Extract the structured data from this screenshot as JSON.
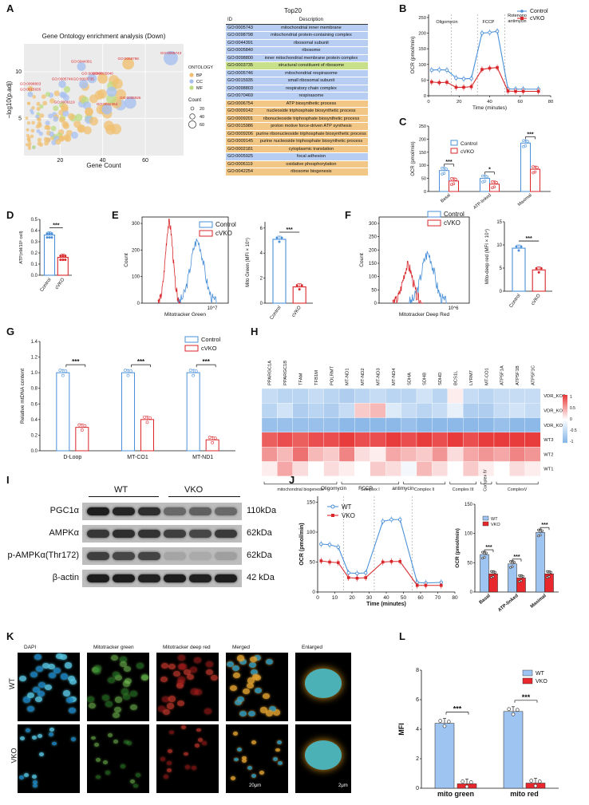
{
  "panels": {
    "A": "A",
    "B": "B",
    "C": "C",
    "D": "D",
    "E": "E",
    "F": "F",
    "G": "G",
    "H": "H",
    "I": "I",
    "J": "J",
    "K": "K",
    "L": "L"
  },
  "colors": {
    "control": "#4a90d9",
    "cvko": "#d9262b",
    "bp": "#f0c070",
    "cc": "#a8c0f0",
    "mf": "#bcdc80"
  },
  "panelA": {
    "bubble": {
      "title": "Gene Ontology enrichment analysis (Down)",
      "xlabel": "Gene Count",
      "ylabel": "−log10(p.adj)",
      "xticks": [
        "20",
        "40",
        "60"
      ],
      "yticks": [
        "5",
        "10"
      ],
      "legend_ontology_title": "ONTOLOGY",
      "legend_ontology": [
        "BP",
        "CC",
        "MF"
      ],
      "legend_count_title": "Count",
      "legend_count": [
        "20",
        "40",
        "60"
      ],
      "labels": [
        {
          "text": "GO:0005743",
          "x": 72,
          "y": 11.9
        },
        {
          "text": "GO:0098798",
          "x": 52,
          "y": 11.3
        },
        {
          "text": "GO:0044391",
          "x": 30,
          "y": 11.0
        },
        {
          "text": "GO:0098800",
          "x": 35,
          "y": 9.7
        },
        {
          "text": "GO:0005840",
          "x": 40,
          "y": 9.7
        },
        {
          "text": "GO:0005746",
          "x": 21,
          "y": 9.1
        },
        {
          "text": "GO:0003735",
          "x": 31,
          "y": 9.1
        },
        {
          "text": "GO:0098803",
          "x": 6,
          "y": 8.6
        },
        {
          "text": "GO:0015935",
          "x": 6,
          "y": 8.0
        },
        {
          "text": "GO:0005925",
          "x": 53,
          "y": 7.1
        },
        {
          "text": "GO:0006119",
          "x": 22,
          "y": 6.6
        },
        {
          "text": "GO:0042254",
          "x": 42,
          "y": 6.4
        }
      ]
    },
    "table": {
      "title": "Top20",
      "headers": [
        "ID",
        "Description"
      ],
      "rows": [
        {
          "id": "GO:0005743",
          "desc": "mitochondrial inner membrane",
          "ont": "CC"
        },
        {
          "id": "GO:0098798",
          "desc": "mitochondrial protein-containing complex",
          "ont": "CC"
        },
        {
          "id": "GO:0044391",
          "desc": "ribosomal subunit",
          "ont": "CC"
        },
        {
          "id": "GO:0005840",
          "desc": "ribosome",
          "ont": "CC"
        },
        {
          "id": "GO:0098800",
          "desc": "inner mitochondrial membrane protein complex",
          "ont": "CC"
        },
        {
          "id": "GO:0003735",
          "desc": "structural constituent of ribosome",
          "ont": "MF"
        },
        {
          "id": "GO:0005746",
          "desc": "mitochondrial respirasome",
          "ont": "CC"
        },
        {
          "id": "GO:0015935",
          "desc": "small ribosomal subunit",
          "ont": "CC"
        },
        {
          "id": "GO:0098803",
          "desc": "respiratory chain complex",
          "ont": "CC"
        },
        {
          "id": "GO:0070469",
          "desc": "respirasome",
          "ont": "CC"
        },
        {
          "id": "GO:0006754",
          "desc": "ATP biosynthetic process",
          "ont": "BP"
        },
        {
          "id": "GO:0009142",
          "desc": "nucleoside triphosphate biosynthetic process",
          "ont": "BP"
        },
        {
          "id": "GO:0009201",
          "desc": "ribonucleoside triphosphate biosynthetic process",
          "ont": "BP"
        },
        {
          "id": "GO:0015986",
          "desc": "proton motive force-driven ATP synthesis",
          "ont": "BP"
        },
        {
          "id": "GO:0009206",
          "desc": "purine ribonucleoside triphosphate biosynthetic process",
          "ont": "BP"
        },
        {
          "id": "GO:0009145",
          "desc": "purine nucleoside triphosphate biosynthetic process",
          "ont": "BP"
        },
        {
          "id": "GO:0002181",
          "desc": "cytoplasmic translation",
          "ont": "BP"
        },
        {
          "id": "GO:0005925",
          "desc": "focal adhesion",
          "ont": "CC"
        },
        {
          "id": "GO:0006119",
          "desc": "oxidative phosphorylation",
          "ont": "BP"
        },
        {
          "id": "GO:0042254",
          "desc": "ribosome biogenesis",
          "ont": "BP"
        }
      ]
    }
  },
  "chart_data": [
    {
      "panel": "B",
      "type": "line",
      "ylabel": "OCR (pmol/min)",
      "xlabel": "Time (minutes)",
      "xticks": [
        "0",
        "20",
        "40",
        "60",
        "80"
      ],
      "yticks": [
        "0",
        "50",
        "100",
        "150",
        "200",
        "250"
      ],
      "xlim": [
        0,
        80
      ],
      "ylim": [
        0,
        260
      ],
      "annotations": [
        "Oligomycin",
        "FCCP",
        "Rotenono antimycin"
      ],
      "series": [
        {
          "name": "Control",
          "x": [
            2,
            7,
            12,
            18,
            23,
            28,
            35,
            40,
            45,
            52,
            57,
            62,
            72
          ],
          "y": [
            82,
            83,
            82,
            57,
            54,
            55,
            200,
            202,
            206,
            22,
            21,
            21,
            21
          ]
        },
        {
          "name": "cVKO",
          "x": [
            2,
            7,
            12,
            18,
            23,
            28,
            35,
            40,
            45,
            52,
            57,
            62,
            72
          ],
          "y": [
            44,
            42,
            43,
            27,
            27,
            29,
            84,
            88,
            90,
            15,
            14,
            14,
            14
          ]
        }
      ]
    },
    {
      "panel": "C",
      "type": "bar",
      "ylabel": "OCR (pmol/min)",
      "categories": [
        "Basal",
        "ATP-linked",
        "Maximal"
      ],
      "yticks": [
        "0",
        "50",
        "100",
        "150",
        "200",
        "250"
      ],
      "ylim": [
        0,
        250
      ],
      "significance": [
        "***",
        "*",
        "***"
      ],
      "series": [
        {
          "name": "Control",
          "values": [
            80,
            50,
            185
          ]
        },
        {
          "name": "cVKO",
          "values": [
            40,
            28,
            85
          ]
        }
      ]
    },
    {
      "panel": "D",
      "type": "bar",
      "ylabel": "ATP(nM/10⁵ cell)",
      "categories": [
        "Control",
        "cVKO"
      ],
      "yticks": [
        "0.0",
        "0.1",
        "0.2",
        "0.3",
        "0.4",
        "0.5"
      ],
      "ylim": [
        0,
        0.5
      ],
      "significance": "***",
      "values": [
        0.36,
        0.16
      ]
    },
    {
      "panel": "E_hist",
      "type": "line",
      "xlabel": "Mitotracker Green",
      "ylabel": "Count",
      "yticks": [
        "0",
        "100",
        "200",
        "300"
      ],
      "xtick_label": "10^7",
      "series": [
        {
          "name": "Control"
        },
        {
          "name": "cVKO"
        }
      ]
    },
    {
      "panel": "E_bar",
      "type": "bar",
      "ylabel": "Mito Green (MFI × 10⁵)",
      "categories": [
        "Control",
        "cVKO"
      ],
      "yticks": [
        "0",
        "2",
        "4",
        "6"
      ],
      "ylim": [
        0,
        6.5
      ],
      "significance": "***",
      "values": [
        5.1,
        1.3
      ]
    },
    {
      "panel": "F_hist",
      "type": "line",
      "xlabel": "Mitotracker Deep Red",
      "ylabel": "Count",
      "yticks": [
        "0",
        "50",
        "100",
        "150",
        "200",
        "250",
        "300"
      ],
      "xtick_label": "10^6",
      "series": [
        {
          "name": "Control"
        },
        {
          "name": "cVKO"
        }
      ]
    },
    {
      "panel": "F_bar",
      "type": "bar",
      "ylabel": "Mito-deep red (MFI × 10⁴)",
      "categories": [
        "Control",
        "cVKO"
      ],
      "yticks": [
        "0",
        "5",
        "10",
        "15"
      ],
      "ylim": [
        0,
        15
      ],
      "significance": "***",
      "values": [
        9.3,
        4.6
      ]
    },
    {
      "panel": "G",
      "type": "bar",
      "ylabel": "Relative mtDNA content",
      "categories": [
        "D-Loop",
        "MT-CO1",
        "MT-ND1"
      ],
      "yticks": [
        "0.0",
        "0.2",
        "0.4",
        "0.6",
        "0.8",
        "1.0",
        "1.2",
        "1.4"
      ],
      "ylim": [
        0,
        1.4
      ],
      "significance": [
        "***",
        "***",
        "***"
      ],
      "series": [
        {
          "name": "Control",
          "values": [
            1.0,
            1.0,
            1.0
          ]
        },
        {
          "name": "cVKO",
          "values": [
            0.3,
            0.4,
            0.14
          ]
        }
      ]
    },
    {
      "panel": "H",
      "type": "heatmap",
      "columns": [
        "PPARGC1A",
        "PPARGC1B",
        "TFAM",
        "TFB1M",
        "POLRMT",
        "MT-ND1",
        "MT-ND2",
        "MT-ND3",
        "MT-ND4",
        "SDHA",
        "SDHB",
        "SDHD",
        "BCS1L",
        "LYRM7",
        "MT-CO1",
        "ATP5F1A",
        "ATP5F1B",
        "ATP5F1C"
      ],
      "rows": [
        "VDR_KO3",
        "VDR_KO2",
        "VDR_KO1",
        "WT3",
        "WT2",
        "WT1"
      ],
      "scale": [
        "1",
        "0.5",
        "0",
        "-0.5",
        "-1"
      ],
      "groups": [
        "mitochondrial biogenesis",
        "Complex I",
        "Complex II",
        "Complex III",
        "Complex IV",
        "ComplexV"
      ],
      "values": [
        [
          -0.5,
          -0.6,
          -0.6,
          -0.5,
          -0.6,
          -0.7,
          -0.6,
          -0.5,
          -0.6,
          -0.6,
          -0.4,
          -0.6,
          0.1,
          -0.5,
          -0.6,
          -0.5,
          -0.5,
          -0.5
        ],
        [
          -0.6,
          -0.4,
          -0.7,
          -0.6,
          -0.7,
          -0.5,
          0.3,
          0.4,
          -0.3,
          -0.5,
          -0.6,
          -0.5,
          -0.2,
          -0.7,
          -0.7,
          -0.5,
          -0.4,
          -0.5
        ],
        [
          -0.9,
          -0.9,
          -0.9,
          -0.9,
          -0.9,
          -1.0,
          -1.0,
          -1.0,
          -1.0,
          -0.9,
          -1.0,
          -1.0,
          -1.0,
          -1.0,
          -1.0,
          -0.9,
          -1.0,
          -1.0
        ],
        [
          0.9,
          1.0,
          0.9,
          1.0,
          1.0,
          1.1,
          1.0,
          1.0,
          1.1,
          1.0,
          1.1,
          1.0,
          1.1,
          1.0,
          1.1,
          1.1,
          1.1,
          1.1
        ],
        [
          0.6,
          0.4,
          0.8,
          0.4,
          0.3,
          0.7,
          0.2,
          0.1,
          0.5,
          0.4,
          0.3,
          0.6,
          0.2,
          0.5,
          0.6,
          0.5,
          0.7,
          0.6
        ],
        [
          0.1,
          0.5,
          0.2,
          0.0,
          0.2,
          0.1,
          0.0,
          0.3,
          0.2,
          -0.1,
          0.4,
          0.2,
          0.0,
          0.3,
          0.1,
          0.0,
          0.2,
          0.1
        ]
      ]
    },
    {
      "panel": "J_line",
      "type": "line",
      "ylabel": "OCR (pmol/min)",
      "xlabel": "Time (minutes)",
      "xticks": [
        "0",
        "10",
        "20",
        "30",
        "40",
        "50",
        "60",
        "70",
        "80"
      ],
      "yticks": [
        "0",
        "50",
        "100",
        "150"
      ],
      "xlim": [
        0,
        80
      ],
      "ylim": [
        0,
        160
      ],
      "annotations": [
        "Oligomycin",
        "FCCP",
        "antimycin"
      ],
      "series": [
        {
          "name": "WT",
          "x": [
            2,
            7,
            12,
            18,
            23,
            28,
            38,
            43,
            48,
            58,
            63,
            72
          ],
          "y": [
            80,
            79,
            75,
            32,
            31,
            32,
            118,
            121,
            121,
            16,
            15,
            16
          ]
        },
        {
          "name": "VKO",
          "x": [
            2,
            7,
            12,
            18,
            23,
            28,
            38,
            43,
            48,
            58,
            63,
            72
          ],
          "y": [
            52,
            50,
            49,
            24,
            23,
            24,
            50,
            51,
            51,
            11,
            11,
            11
          ]
        }
      ]
    },
    {
      "panel": "J_bar",
      "type": "bar",
      "ylabel": "OCR (pmol/min)",
      "categories": [
        "Basal",
        "ATP-linked",
        "Maximal"
      ],
      "yticks": [
        "0",
        "50",
        "100",
        "150"
      ],
      "ylim": [
        0,
        150
      ],
      "significance": [
        "***",
        "***",
        "***"
      ],
      "series": [
        {
          "name": "WT",
          "values": [
            64,
            48,
            102
          ]
        },
        {
          "name": "VKO",
          "values": [
            31,
            24,
            31
          ]
        }
      ]
    },
    {
      "panel": "L",
      "type": "bar",
      "ylabel": "MFI",
      "categories": [
        "mito green",
        "mito red"
      ],
      "yticks": [
        "0",
        "2",
        "4",
        "6",
        "8"
      ],
      "ylim": [
        0,
        8
      ],
      "significance": [
        "***",
        "***"
      ],
      "series": [
        {
          "name": "WT",
          "values": [
            4.4,
            5.2
          ]
        },
        {
          "name": "VKO",
          "values": [
            0.3,
            0.35
          ]
        }
      ]
    }
  ],
  "panelI": {
    "groups": [
      "WT",
      "VKO"
    ],
    "bands": [
      {
        "name": "PGC1α",
        "size": "110kDa"
      },
      {
        "name": "AMPKα",
        "size": "62kDa"
      },
      {
        "name": "p-AMPKα(Thr172)",
        "size": "62kDa"
      },
      {
        "name": "β-actin",
        "size": "42 kDa"
      }
    ]
  },
  "panelK": {
    "columns": [
      "DAPI",
      "Mitotracker green",
      "Mitotracker deep red",
      "Merged",
      "Enlarged"
    ],
    "rows": [
      "WT",
      "VKO"
    ],
    "scale1": "20μm",
    "scale2": "2μm"
  }
}
